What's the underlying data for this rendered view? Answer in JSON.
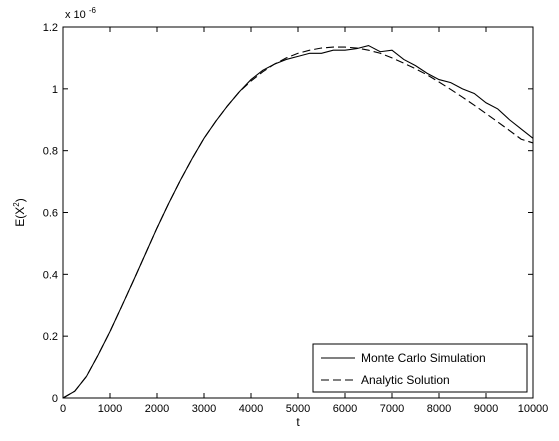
{
  "chart_data": {
    "type": "line",
    "title": "",
    "xlabel": "t",
    "ylabel": {
      "base": "E(X",
      "sup": "2",
      "close": ")"
    },
    "y_exponent": {
      "prefix": "x 10",
      "power": "-6"
    },
    "xlim": [
      0,
      10000
    ],
    "ylim": [
      0,
      1.2
    ],
    "x_ticks": [
      0,
      1000,
      2000,
      3000,
      4000,
      5000,
      6000,
      7000,
      8000,
      9000,
      10000
    ],
    "y_ticks": [
      0,
      0.2,
      0.4,
      0.6,
      0.8,
      1,
      1.2
    ],
    "x_tick_labels": [
      "0",
      "1000",
      "2000",
      "3000",
      "4000",
      "5000",
      "6000",
      "7000",
      "8000",
      "9000",
      "10000"
    ],
    "y_tick_labels": [
      "0",
      "0.2",
      "0.4",
      "0.6",
      "0.8",
      "1",
      "1.2"
    ],
    "grid": false,
    "legend_position": "bottom-right",
    "series": [
      {
        "name": "Monte Carlo Simulation",
        "style": "solid",
        "color": "#000000",
        "x": [
          0,
          250,
          500,
          750,
          1000,
          1250,
          1500,
          1750,
          2000,
          2250,
          2500,
          2750,
          3000,
          3250,
          3500,
          3750,
          4000,
          4250,
          4500,
          4750,
          5000,
          5250,
          5500,
          5750,
          6000,
          6250,
          6500,
          6750,
          7000,
          7250,
          7500,
          7750,
          8000,
          8250,
          8500,
          8750,
          9000,
          9250,
          9500,
          9750,
          10000
        ],
        "y": [
          0,
          0.022,
          0.07,
          0.14,
          0.215,
          0.297,
          0.38,
          0.465,
          0.55,
          0.63,
          0.705,
          0.775,
          0.84,
          0.895,
          0.945,
          0.99,
          1.03,
          1.06,
          1.08,
          1.095,
          1.105,
          1.115,
          1.115,
          1.125,
          1.125,
          1.13,
          1.14,
          1.12,
          1.125,
          1.095,
          1.075,
          1.05,
          1.03,
          1.02,
          1.0,
          0.985,
          0.955,
          0.935,
          0.9,
          0.87,
          0.84
        ]
      },
      {
        "name": "Analytic Solution",
        "style": "dashed",
        "color": "#000000",
        "x": [
          0,
          250,
          500,
          750,
          1000,
          1250,
          1500,
          1750,
          2000,
          2250,
          2500,
          2750,
          3000,
          3250,
          3500,
          3750,
          4000,
          4250,
          4500,
          4750,
          5000,
          5250,
          5500,
          5750,
          6000,
          6250,
          6500,
          6750,
          7000,
          7250,
          7500,
          7750,
          8000,
          8250,
          8500,
          8750,
          9000,
          9250,
          9500,
          9750,
          10000
        ],
        "y": [
          0,
          0.022,
          0.07,
          0.14,
          0.215,
          0.297,
          0.38,
          0.465,
          0.55,
          0.63,
          0.705,
          0.775,
          0.84,
          0.895,
          0.945,
          0.99,
          1.025,
          1.055,
          1.08,
          1.1,
          1.115,
          1.125,
          1.132,
          1.135,
          1.135,
          1.132,
          1.125,
          1.115,
          1.1,
          1.083,
          1.065,
          1.045,
          1.022,
          0.998,
          0.973,
          0.947,
          0.92,
          0.893,
          0.865,
          0.837,
          0.825
        ]
      }
    ]
  }
}
